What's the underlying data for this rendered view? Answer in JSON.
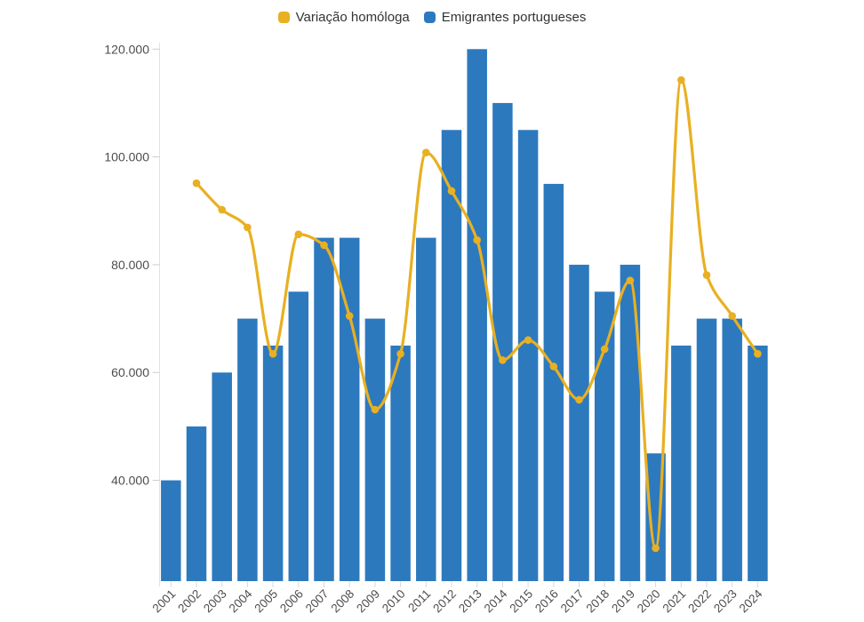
{
  "legend": {
    "items": [
      {
        "label": "Variação homóloga",
        "color": "#E8B022",
        "series_type": "line"
      },
      {
        "label": "Emigrantes portugueses",
        "color": "#2D79BE",
        "series_type": "bar"
      }
    ],
    "position": "top-center"
  },
  "chart_data": {
    "type": "bar",
    "subtype": "bar+line-combo",
    "title": "",
    "xlabel": "",
    "ylabel": "",
    "background": "#ffffff",
    "grid": "off",
    "legend_position": "top-center",
    "categories": [
      2001,
      2002,
      2003,
      2004,
      2005,
      2006,
      2007,
      2008,
      2009,
      2010,
      2011,
      2012,
      2013,
      2014,
      2015,
      2016,
      2017,
      2018,
      2019,
      2020,
      2021,
      2022,
      2023,
      2024
    ],
    "series": [
      {
        "name": "Emigrantes portugueses",
        "type": "bar",
        "color": "#2D79BE",
        "values": [
          40000,
          50000,
          60000,
          70000,
          65000,
          75000,
          85000,
          85000,
          70000,
          65000,
          85000,
          105000,
          120000,
          110000,
          105000,
          95000,
          80000,
          75000,
          80000,
          45000,
          65000,
          70000,
          70000,
          65000
        ]
      },
      {
        "name": "Variação homóloga",
        "type": "line",
        "unit": "percent_yoy",
        "color": "#E8B022",
        "marker": "circle",
        "x": [
          2002,
          2003,
          2004,
          2005,
          2006,
          2007,
          2008,
          2009,
          2010,
          2011,
          2012,
          2013,
          2014,
          2015,
          2016,
          2017,
          2018,
          2019,
          2020,
          2021,
          2022,
          2023,
          2024
        ],
        "values": [
          25.0,
          20.0,
          16.67,
          -7.14,
          15.38,
          13.33,
          0.0,
          -17.65,
          -7.14,
          30.77,
          23.53,
          14.29,
          -8.33,
          -4.55,
          -9.52,
          -15.79,
          -6.25,
          6.67,
          -43.75,
          44.44,
          7.69,
          0.0,
          -7.14
        ],
        "secondary_axis": {
          "hidden": true,
          "zero_percent_at_primary_value": 70500,
          "primary_units_per_percent": 985
        }
      }
    ],
    "y_axis": {
      "tick_values": [
        40000,
        60000,
        80000,
        100000,
        120000
      ],
      "tick_labels": [
        "40.000",
        "60.000",
        "80.000",
        "100.000",
        "120.000"
      ],
      "visible_min": 21300,
      "visible_max": 121200
    },
    "x_axis": {
      "tick_labels": [
        "2001",
        "2002",
        "2003",
        "2004",
        "2005",
        "2006",
        "2007",
        "2008",
        "2009",
        "2010",
        "2011",
        "2012",
        "2013",
        "2014",
        "2015",
        "2016",
        "2017",
        "2018",
        "2019",
        "2020",
        "2021",
        "2022",
        "2023",
        "2024"
      ],
      "label_rotation": -45
    }
  }
}
